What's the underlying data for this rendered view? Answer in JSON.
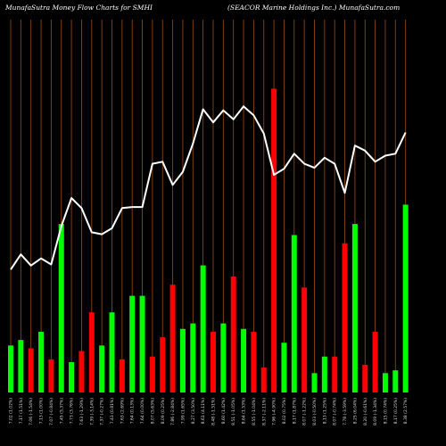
{
  "header": {
    "left": "MunafaSutra  Money Flow  Charts for SMHI",
    "right": "(SEACOR Marine    Holdings Inc.) MunafaSutra.com"
  },
  "colors": {
    "background": "#000000",
    "grid": "#8B4513",
    "up": "#00ff00",
    "down": "#ff0000",
    "line": "#ffffff"
  },
  "chart_data": {
    "type": "bar",
    "title": "MunafaSutra  Money Flow  Charts for SMHI",
    "subtitle": "(SEACOR Marine    Holdings Inc.) MunafaSutra.com",
    "categories": [
      "7.02 (1.02%)",
      "7.17 (1.51%)",
      "7.06 (-1.54%)",
      "7.13 (1.00%)",
      "7.07 (-0.84%)",
      "7.45 (5.37%)",
      "7.73 (3.76%)",
      "7.63 (-1.29%)",
      "7.39 (-3.14%)",
      "7.37 (-0.27%)",
      "7.43 (0.81%)",
      "7.63 (2.69%)",
      "7.64 (0.13%)",
      "7.64 (0.00%)",
      "8.07 (5.63%)",
      "8.09 (0.25%)",
      "7.86 (-2.84%)",
      "7.99 (1.65%)",
      "8.27 (3.50%)",
      "8.61 (4.11%)",
      "8.48 (-1.51%)",
      "8.60 (1.42%)",
      "8.51 (-1.05%)",
      "8.64 (1.53%)",
      "8.55 (-1.04%)",
      "8.37 (-2.11%)",
      "7.96 (-4.90%)",
      "8.02 (0.75%)",
      "8.17 (1.87%)",
      "8.07 (-1.22%)",
      "8.03 (-0.50%)",
      "8.13 (1.25%)",
      "8.07 (-0.74%)",
      "7.78 (-3.59%)",
      "8.25 (6.04%)",
      "8.20 (-0.61%)",
      "8.09 (-1.34%)",
      "8.15 (0.74%)",
      "8.17 (0.25%)",
      "8.38 (2.57%)"
    ],
    "series": [
      {
        "price": [
          7.02,
          7.17,
          7.06,
          7.13,
          7.07,
          7.45,
          7.73,
          7.63,
          7.39,
          7.37,
          7.43,
          7.63,
          7.64,
          7.64,
          8.07,
          8.09,
          7.86,
          7.99,
          8.27,
          8.61,
          8.48,
          8.6,
          8.51,
          8.64,
          8.55,
          8.37,
          7.96,
          8.02,
          8.17,
          8.07,
          8.03,
          8.13,
          8.07,
          7.78,
          8.25,
          8.2,
          8.09,
          8.15,
          8.17,
          8.38
        ],
        "flow": [
          17,
          19,
          16,
          22,
          12,
          61,
          11,
          15,
          29,
          17,
          29,
          12,
          35,
          35,
          13,
          20,
          39,
          23,
          25,
          46,
          22,
          25,
          42,
          23,
          22,
          9,
          110,
          18,
          57,
          38,
          7,
          13,
          13,
          54,
          61,
          10,
          22,
          7,
          8,
          68
        ],
        "direction": [
          "up",
          "up",
          "down",
          "up",
          "down",
          "up",
          "up",
          "down",
          "down",
          "up",
          "up",
          "down",
          "up",
          "up",
          "down",
          "down",
          "down",
          "up",
          "up",
          "up",
          "down",
          "up",
          "down",
          "up",
          "down",
          "down",
          "down",
          "up",
          "up",
          "down",
          "up",
          "up",
          "down",
          "down",
          "up",
          "down",
          "down",
          "up",
          "up",
          "up"
        ]
      }
    ],
    "ylim_price": [
      5.8,
      9.5
    ],
    "ylim_flow": [
      0,
      135
    ],
    "grid": "vertical"
  }
}
